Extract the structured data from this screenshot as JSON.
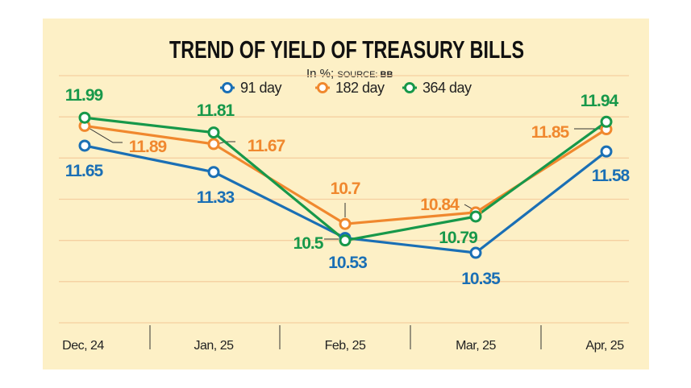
{
  "chart_data": {
    "type": "line",
    "title": "TREND OF YIELD OF TREASURY BILLS",
    "subtitle_prefix": "In %; ",
    "subtitle_source_label": "SOURCE: ",
    "subtitle_source": "BB",
    "categories": [
      "Dec, 24",
      "Jan, 25",
      "Feb, 25",
      "Mar, 25",
      "Apr, 25"
    ],
    "ylim": [
      9.5,
      12.5
    ],
    "grid": true,
    "legend_placement": "top-center",
    "series": [
      {
        "name": "91 day",
        "color": "#1a6fb5",
        "values": [
          11.65,
          11.33,
          10.53,
          10.35,
          11.58
        ],
        "labels": [
          "11.65",
          "11.33",
          "10.53",
          "10.35",
          "11.58"
        ]
      },
      {
        "name": "182 day",
        "color": "#f0882e",
        "values": [
          11.89,
          11.67,
          10.7,
          10.84,
          11.85
        ],
        "labels": [
          "11.89",
          "11.67",
          "10.7",
          "10.84",
          "11.85"
        ]
      },
      {
        "name": "364 day",
        "color": "#17984a",
        "values": [
          11.99,
          11.81,
          10.5,
          10.79,
          11.94
        ],
        "labels": [
          "11.99",
          "11.81",
          "10.5",
          "10.79",
          "11.94"
        ]
      }
    ],
    "background_color": "#fdf0c6",
    "grid_color": "#f5cfa0"
  }
}
